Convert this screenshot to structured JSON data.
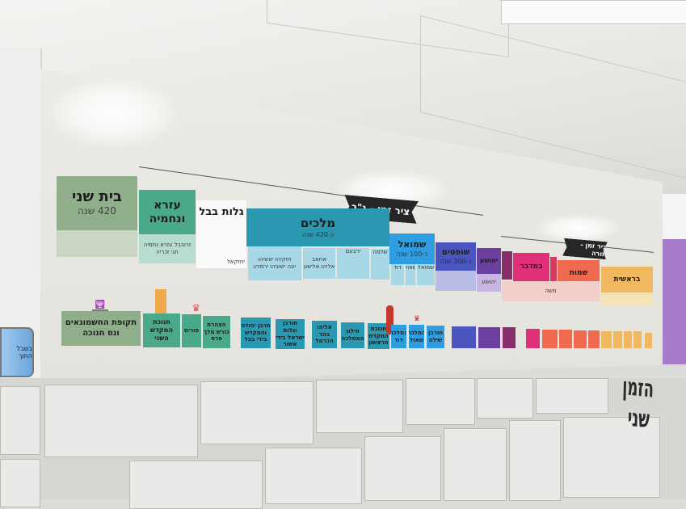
{
  "colors": {
    "second_temple": "#8fae8a",
    "ezra": "#4aa98a",
    "kings": "#2a98b0",
    "samuel": "#2f9ee0",
    "judges": "#4b55c0",
    "joshua": "#6a3fa0",
    "numbers": "#e0307a",
    "exodus": "#f06a50",
    "genesis": "#f0b860",
    "banner": "#262626"
  },
  "banners": {
    "tanakh": "ציר זמן - נ\"ך",
    "torah": "ציר זמן - תורה"
  },
  "periods": [
    {
      "title": "בית שני",
      "years": "420 שנה"
    },
    {
      "title": "עזרא ונחמיה",
      "people": [
        "זרובבל עזרא נחמיה",
        "חגי זכריה"
      ]
    },
    {
      "title": "גלות בבל",
      "people": [
        "יחזקאל"
      ]
    },
    {
      "title": "מלכים",
      "years": "כ-420 שנה",
      "people": [
        "חזקיהו יאשיהו",
        "יונה ישעיהו ירמיהו",
        "אחאב",
        "אליהו אלישע",
        "ירבעם",
        "שלמה"
      ]
    },
    {
      "title": "שמואל",
      "years": "כ-100 שנה",
      "people": [
        "דוד",
        "שאול",
        "שמואל"
      ]
    },
    {
      "title": "שופטים",
      "years": "כ-300 שנה"
    },
    {
      "title": "יהושע",
      "people": [
        "יהושע"
      ]
    },
    {
      "title": "במדבר"
    },
    {
      "title": "שמות",
      "people": [
        "משה"
      ]
    },
    {
      "title": "בראשית"
    }
  ],
  "events": [
    "תקופת החשמונאים ונס חנוכה",
    "חנוכת המקדש השני",
    "פורים",
    "הצהרת כורש מלך פרס",
    "חרבן יהודה והמקדש בידי בבל",
    "חורבן וגלות ישראל בידי אשור",
    "אליהו בהר הכרמל",
    "פילוג הממלכה",
    "חנוכת המקדש הראשון",
    "המלכת דוד",
    "המלכת שאול",
    "חורבן שילה"
  ],
  "sign": "בשבל התוך",
  "wall_lettering": [
    "הזמן",
    "שני"
  ]
}
